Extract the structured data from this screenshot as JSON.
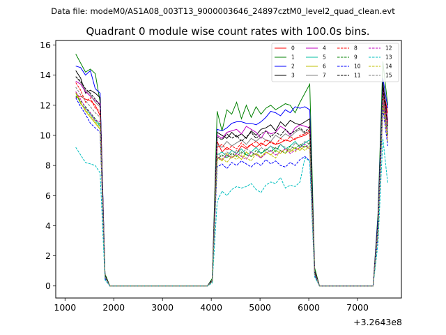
{
  "chart_data": {
    "type": "line",
    "suptitle": "Data file: modeM0/AS1A08_003T13_9000003646_24897cztM0_level2_quad_clean.evt",
    "title": "Quadrant 0 module wise count rates with 100.0s bins.",
    "xlabel": "",
    "ylabel": "",
    "x_offset_label": "+3.2643e8",
    "xlim": [
      810,
      7900
    ],
    "ylim": [
      -0.8,
      16.3
    ],
    "xticks": [
      1000,
      2000,
      3000,
      4000,
      5000,
      6000,
      7000
    ],
    "yticks": [
      0,
      2,
      4,
      6,
      8,
      10,
      12,
      14,
      16
    ],
    "grid": false,
    "legend_position": "top-right",
    "x": [
      1220,
      1320,
      1420,
      1520,
      1620,
      1720,
      1820,
      1920,
      2020,
      2120,
      2220,
      2320,
      2420,
      2520,
      2620,
      2720,
      2820,
      2920,
      3020,
      3120,
      3220,
      3320,
      3420,
      3520,
      3620,
      3720,
      3820,
      3920,
      4020,
      4120,
      4220,
      4320,
      4420,
      4520,
      4620,
      4720,
      4820,
      4920,
      5020,
      5120,
      5220,
      5320,
      5420,
      5520,
      5620,
      5720,
      5820,
      5920,
      6020,
      6120,
      6220,
      6320,
      6420,
      6520,
      6620,
      6720,
      6820,
      6920,
      7020,
      7120,
      7220,
      7320,
      7420,
      7520,
      7620
    ],
    "series": [
      {
        "name": "0",
        "color": "#ff0000",
        "dash": "solid",
        "values": [
          12.5,
          12.6,
          12.4,
          12.3,
          12.0,
          11.3,
          0.6,
          0,
          0,
          0,
          0,
          0,
          0,
          0,
          0,
          0,
          0,
          0,
          0,
          0,
          0,
          0,
          0,
          0,
          0,
          0,
          0,
          0,
          0.3,
          9.6,
          8.9,
          9.2,
          9.0,
          8.8,
          9.3,
          9.1,
          9.4,
          9.2,
          9.5,
          9.3,
          9.6,
          9.4,
          9.5,
          9.7,
          9.6,
          9.8,
          9.9,
          10.0,
          10.2,
          0.9,
          0,
          0,
          0,
          0,
          0,
          0,
          0,
          0,
          0,
          0,
          0,
          0,
          4.0,
          13.2,
          11.5
        ]
      },
      {
        "name": "1",
        "color": "#008000",
        "dash": "solid",
        "values": [
          15.4,
          14.8,
          14.2,
          14.4,
          14.1,
          12.2,
          0.8,
          0,
          0,
          0,
          0,
          0,
          0,
          0,
          0,
          0,
          0,
          0,
          0,
          0,
          0,
          0,
          0,
          0,
          0,
          0,
          0,
          0,
          0.5,
          11.6,
          10.3,
          11.7,
          11.4,
          12.2,
          11.1,
          12.0,
          11.2,
          11.9,
          11.4,
          11.8,
          12.0,
          11.7,
          11.9,
          12.1,
          12.0,
          11.5,
          12.2,
          12.8,
          13.4,
          1.2,
          0,
          0,
          0,
          0,
          0,
          0,
          0,
          0,
          0,
          0,
          0,
          0,
          4.8,
          14.9,
          12.0
        ]
      },
      {
        "name": "2",
        "color": "#0000ff",
        "dash": "solid",
        "values": [
          14.6,
          14.5,
          14.0,
          14.3,
          13.1,
          12.8,
          0.7,
          0,
          0,
          0,
          0,
          0,
          0,
          0,
          0,
          0,
          0,
          0,
          0,
          0,
          0,
          0,
          0,
          0,
          0,
          0,
          0,
          0,
          0.4,
          10.4,
          10.3,
          10.5,
          10.8,
          10.9,
          10.9,
          10.8,
          10.8,
          10.7,
          10.9,
          11.2,
          11.6,
          11.5,
          11.3,
          11.7,
          11.5,
          11.9,
          11.8,
          11.9,
          11.7,
          1.0,
          0,
          0,
          0,
          0,
          0,
          0,
          0,
          0,
          0,
          0,
          0,
          0,
          4.5,
          13.8,
          11.8
        ]
      },
      {
        "name": "3",
        "color": "#000000",
        "dash": "solid",
        "values": [
          14.3,
          13.8,
          12.8,
          13.0,
          12.8,
          12.5,
          0.7,
          0,
          0,
          0,
          0,
          0,
          0,
          0,
          0,
          0,
          0,
          0,
          0,
          0,
          0,
          0,
          0,
          0,
          0,
          0,
          0,
          0,
          0.4,
          10.2,
          10.0,
          9.8,
          10.2,
          9.9,
          10.1,
          9.8,
          10.3,
          10.0,
          10.4,
          10.5,
          10.7,
          10.3,
          10.9,
          10.6,
          11.0,
          10.8,
          10.7,
          10.9,
          11.1,
          1.0,
          0,
          0,
          0,
          0,
          0,
          0,
          0,
          0,
          0,
          0,
          0,
          0,
          4.2,
          13.5,
          11.0
        ]
      },
      {
        "name": "4",
        "color": "#bf00bf",
        "dash": "solid",
        "values": [
          13.6,
          13.4,
          12.9,
          12.6,
          12.3,
          12.1,
          0.6,
          0,
          0,
          0,
          0,
          0,
          0,
          0,
          0,
          0,
          0,
          0,
          0,
          0,
          0,
          0,
          0,
          0,
          0,
          0,
          0,
          0,
          0.4,
          10.0,
          9.8,
          10.2,
          10.3,
          10.4,
          10.1,
          10.6,
          10.4,
          10.2,
          9.8,
          10.3,
          10.1,
          10.2,
          10.6,
          10.4,
          10.0,
          10.5,
          10.7,
          10.6,
          10.5,
          0.9,
          0,
          0,
          0,
          0,
          0,
          0,
          0,
          0,
          0,
          0,
          0,
          0,
          4.1,
          13.0,
          10.9
        ]
      },
      {
        "name": "5",
        "color": "#00bfa0",
        "dash": "solid",
        "values": [
          12.8,
          12.1,
          11.8,
          11.4,
          11.0,
          10.6,
          0.6,
          0,
          0,
          0,
          0,
          0,
          0,
          0,
          0,
          0,
          0,
          0,
          0,
          0,
          0,
          0,
          0,
          0,
          0,
          0,
          0,
          0,
          0.3,
          8.7,
          8.9,
          8.6,
          9.0,
          8.8,
          9.1,
          8.7,
          8.9,
          9.2,
          8.8,
          9.0,
          9.3,
          8.9,
          9.4,
          9.1,
          9.3,
          9.6,
          9.2,
          9.5,
          9.7,
          0.8,
          0,
          0,
          0,
          0,
          0,
          0,
          0,
          0,
          0,
          0,
          0,
          0,
          3.8,
          12.1,
          10.1
        ]
      },
      {
        "name": "6",
        "color": "#bfbf00",
        "dash": "solid",
        "values": [
          12.9,
          12.2,
          11.6,
          11.2,
          10.8,
          10.4,
          0.6,
          0,
          0,
          0,
          0,
          0,
          0,
          0,
          0,
          0,
          0,
          0,
          0,
          0,
          0,
          0,
          0,
          0,
          0,
          0,
          0,
          0,
          0.3,
          8.6,
          8.3,
          8.8,
          8.5,
          8.7,
          8.4,
          8.9,
          8.6,
          8.8,
          8.5,
          8.9,
          8.7,
          9.0,
          8.8,
          9.1,
          8.9,
          9.2,
          9.0,
          9.3,
          9.1,
          0.8,
          0,
          0,
          0,
          0,
          0,
          0,
          0,
          0,
          0,
          0,
          0,
          0,
          3.7,
          12.5,
          10.0
        ]
      },
      {
        "name": "7",
        "color": "#808080",
        "dash": "solid",
        "values": [
          13.9,
          13.5,
          13.0,
          12.7,
          12.2,
          11.9,
          0.6,
          0,
          0,
          0,
          0,
          0,
          0,
          0,
          0,
          0,
          0,
          0,
          0,
          0,
          0,
          0,
          0,
          0,
          0,
          0,
          0,
          0,
          0.4,
          9.4,
          9.2,
          9.6,
          9.3,
          9.5,
          9.7,
          9.4,
          9.8,
          9.6,
          9.9,
          9.7,
          9.6,
          10.0,
          9.8,
          10.1,
          9.9,
          10.2,
          10.4,
          10.1,
          10.3,
          0.9,
          0,
          0,
          0,
          0,
          0,
          0,
          0,
          0,
          0,
          0,
          0,
          0,
          4.0,
          12.9,
          10.4
        ]
      },
      {
        "name": "8",
        "color": "#ff0000",
        "dash": "dashed",
        "values": [
          13.5,
          13.0,
          12.2,
          12.5,
          11.8,
          11.6,
          0.6,
          0,
          0,
          0,
          0,
          0,
          0,
          0,
          0,
          0,
          0,
          0,
          0,
          0,
          0,
          0,
          0,
          0,
          0,
          0,
          0,
          0,
          0.3,
          9.2,
          9.4,
          9.0,
          9.3,
          9.1,
          9.5,
          9.2,
          9.4,
          9.6,
          9.3,
          9.7,
          9.5,
          9.4,
          9.8,
          9.6,
          9.9,
          9.7,
          10.0,
          10.1,
          10.4,
          0.9,
          0,
          0,
          0,
          0,
          0,
          0,
          0,
          0,
          0,
          0,
          0,
          0,
          3.9,
          12.7,
          10.7
        ]
      },
      {
        "name": "9",
        "color": "#008000",
        "dash": "dashed",
        "values": [
          12.6,
          12.3,
          11.9,
          11.5,
          11.1,
          10.7,
          0.6,
          0,
          0,
          0,
          0,
          0,
          0,
          0,
          0,
          0,
          0,
          0,
          0,
          0,
          0,
          0,
          0,
          0,
          0,
          0,
          0,
          0,
          0.3,
          8.4,
          8.7,
          8.5,
          8.8,
          8.6,
          8.9,
          8.7,
          8.6,
          9.0,
          8.8,
          9.1,
          8.9,
          9.2,
          9.0,
          8.8,
          9.3,
          9.1,
          9.4,
          9.2,
          9.5,
          0.8,
          0,
          0,
          0,
          0,
          0,
          0,
          0,
          0,
          0,
          0,
          0,
          0,
          3.6,
          12.2,
          10.0
        ]
      },
      {
        "name": "10",
        "color": "#0000ff",
        "dash": "dashed",
        "values": [
          12.5,
          11.9,
          11.4,
          10.8,
          10.5,
          10.2,
          0.5,
          0,
          0,
          0,
          0,
          0,
          0,
          0,
          0,
          0,
          0,
          0,
          0,
          0,
          0,
          0,
          0,
          0,
          0,
          0,
          0,
          0,
          0.3,
          7.9,
          8.1,
          7.8,
          8.2,
          8.0,
          8.3,
          8.1,
          7.9,
          8.2,
          8.0,
          8.4,
          8.1,
          8.3,
          8.0,
          7.9,
          8.2,
          8.0,
          8.4,
          8.6,
          8.3,
          0.7,
          0,
          0,
          0,
          0,
          0,
          0,
          0,
          0,
          0,
          0,
          0,
          0,
          3.4,
          11.8,
          9.3
        ]
      },
      {
        "name": "11",
        "color": "#000000",
        "dash": "dashed",
        "values": [
          13.9,
          13.6,
          13.1,
          12.8,
          12.4,
          12.0,
          0.7,
          0,
          0,
          0,
          0,
          0,
          0,
          0,
          0,
          0,
          0,
          0,
          0,
          0,
          0,
          0,
          0,
          0,
          0,
          0,
          0,
          0,
          0.4,
          9.9,
          9.7,
          10.1,
          9.8,
          10.0,
          9.6,
          9.9,
          10.2,
          9.8,
          10.1,
          10.3,
          9.9,
          10.2,
          10.0,
          10.4,
          10.1,
          10.3,
          10.5,
          10.2,
          10.6,
          0.9,
          0,
          0,
          0,
          0,
          0,
          0,
          0,
          0,
          0,
          0,
          0,
          0,
          4.1,
          13.1,
          10.6
        ]
      },
      {
        "name": "12",
        "color": "#bf00bf",
        "dash": "dashed",
        "values": [
          12.9,
          12.4,
          11.8,
          11.5,
          11.0,
          10.9,
          0.6,
          0,
          0,
          0,
          0,
          0,
          0,
          0,
          0,
          0,
          0,
          0,
          0,
          0,
          0,
          0,
          0,
          0,
          0,
          0,
          0,
          0,
          0.3,
          8.6,
          8.4,
          8.7,
          8.5,
          8.8,
          8.6,
          8.4,
          8.9,
          8.7,
          8.5,
          8.8,
          9.0,
          8.7,
          8.9,
          9.1,
          8.8,
          9.0,
          9.2,
          9.4,
          9.1,
          0.8,
          0,
          0,
          0,
          0,
          0,
          0,
          0,
          0,
          0,
          0,
          0,
          0,
          3.7,
          12.3,
          9.8
        ]
      },
      {
        "name": "13",
        "color": "#00bfbf",
        "dash": "dashed",
        "values": [
          9.2,
          8.7,
          8.2,
          8.1,
          8.0,
          7.5,
          0.4,
          0,
          0,
          0,
          0,
          0,
          0,
          0,
          0,
          0,
          0,
          0,
          0,
          0,
          0,
          0,
          0,
          0,
          0,
          0,
          0,
          0,
          0.2,
          5.6,
          6.3,
          6.0,
          6.4,
          6.6,
          6.5,
          6.6,
          6.8,
          6.4,
          6.2,
          6.7,
          6.9,
          6.8,
          7.2,
          6.5,
          6.7,
          6.6,
          6.9,
          8.5,
          8.3,
          0.6,
          0,
          0,
          0,
          0,
          0,
          0,
          0,
          0,
          0,
          0,
          0,
          0,
          2.8,
          9.8,
          6.8
        ]
      },
      {
        "name": "14",
        "color": "#bfbf00",
        "dash": "dashed",
        "values": [
          12.8,
          12.1,
          11.7,
          11.3,
          10.9,
          10.5,
          0.6,
          0,
          0,
          0,
          0,
          0,
          0,
          0,
          0,
          0,
          0,
          0,
          0,
          0,
          0,
          0,
          0,
          0,
          0,
          0,
          0,
          0,
          0.3,
          8.3,
          8.5,
          8.2,
          8.6,
          8.4,
          8.7,
          8.5,
          8.3,
          8.8,
          8.6,
          8.9,
          8.7,
          8.5,
          9.0,
          8.8,
          9.1,
          8.9,
          9.2,
          9.0,
          9.3,
          0.8,
          0,
          0,
          0,
          0,
          0,
          0,
          0,
          0,
          0,
          0,
          0,
          0,
          3.6,
          12.0,
          9.6
        ]
      },
      {
        "name": "15",
        "color": "#808080",
        "dash": "dashed",
        "values": [
          13.2,
          12.7,
          12.3,
          11.9,
          11.5,
          11.2,
          0.6,
          0,
          0,
          0,
          0,
          0,
          0,
          0,
          0,
          0,
          0,
          0,
          0,
          0,
          0,
          0,
          0,
          0,
          0,
          0,
          0,
          0,
          0.3,
          8.8,
          8.6,
          8.9,
          8.7,
          9.0,
          8.8,
          9.1,
          8.9,
          8.7,
          9.2,
          9.0,
          9.3,
          9.1,
          9.4,
          9.2,
          9.0,
          9.5,
          9.3,
          9.6,
          9.4,
          0.8,
          0,
          0,
          0,
          0,
          0,
          0,
          0,
          0,
          0,
          0,
          0,
          0,
          3.9,
          12.6,
          10.2
        ]
      }
    ]
  }
}
